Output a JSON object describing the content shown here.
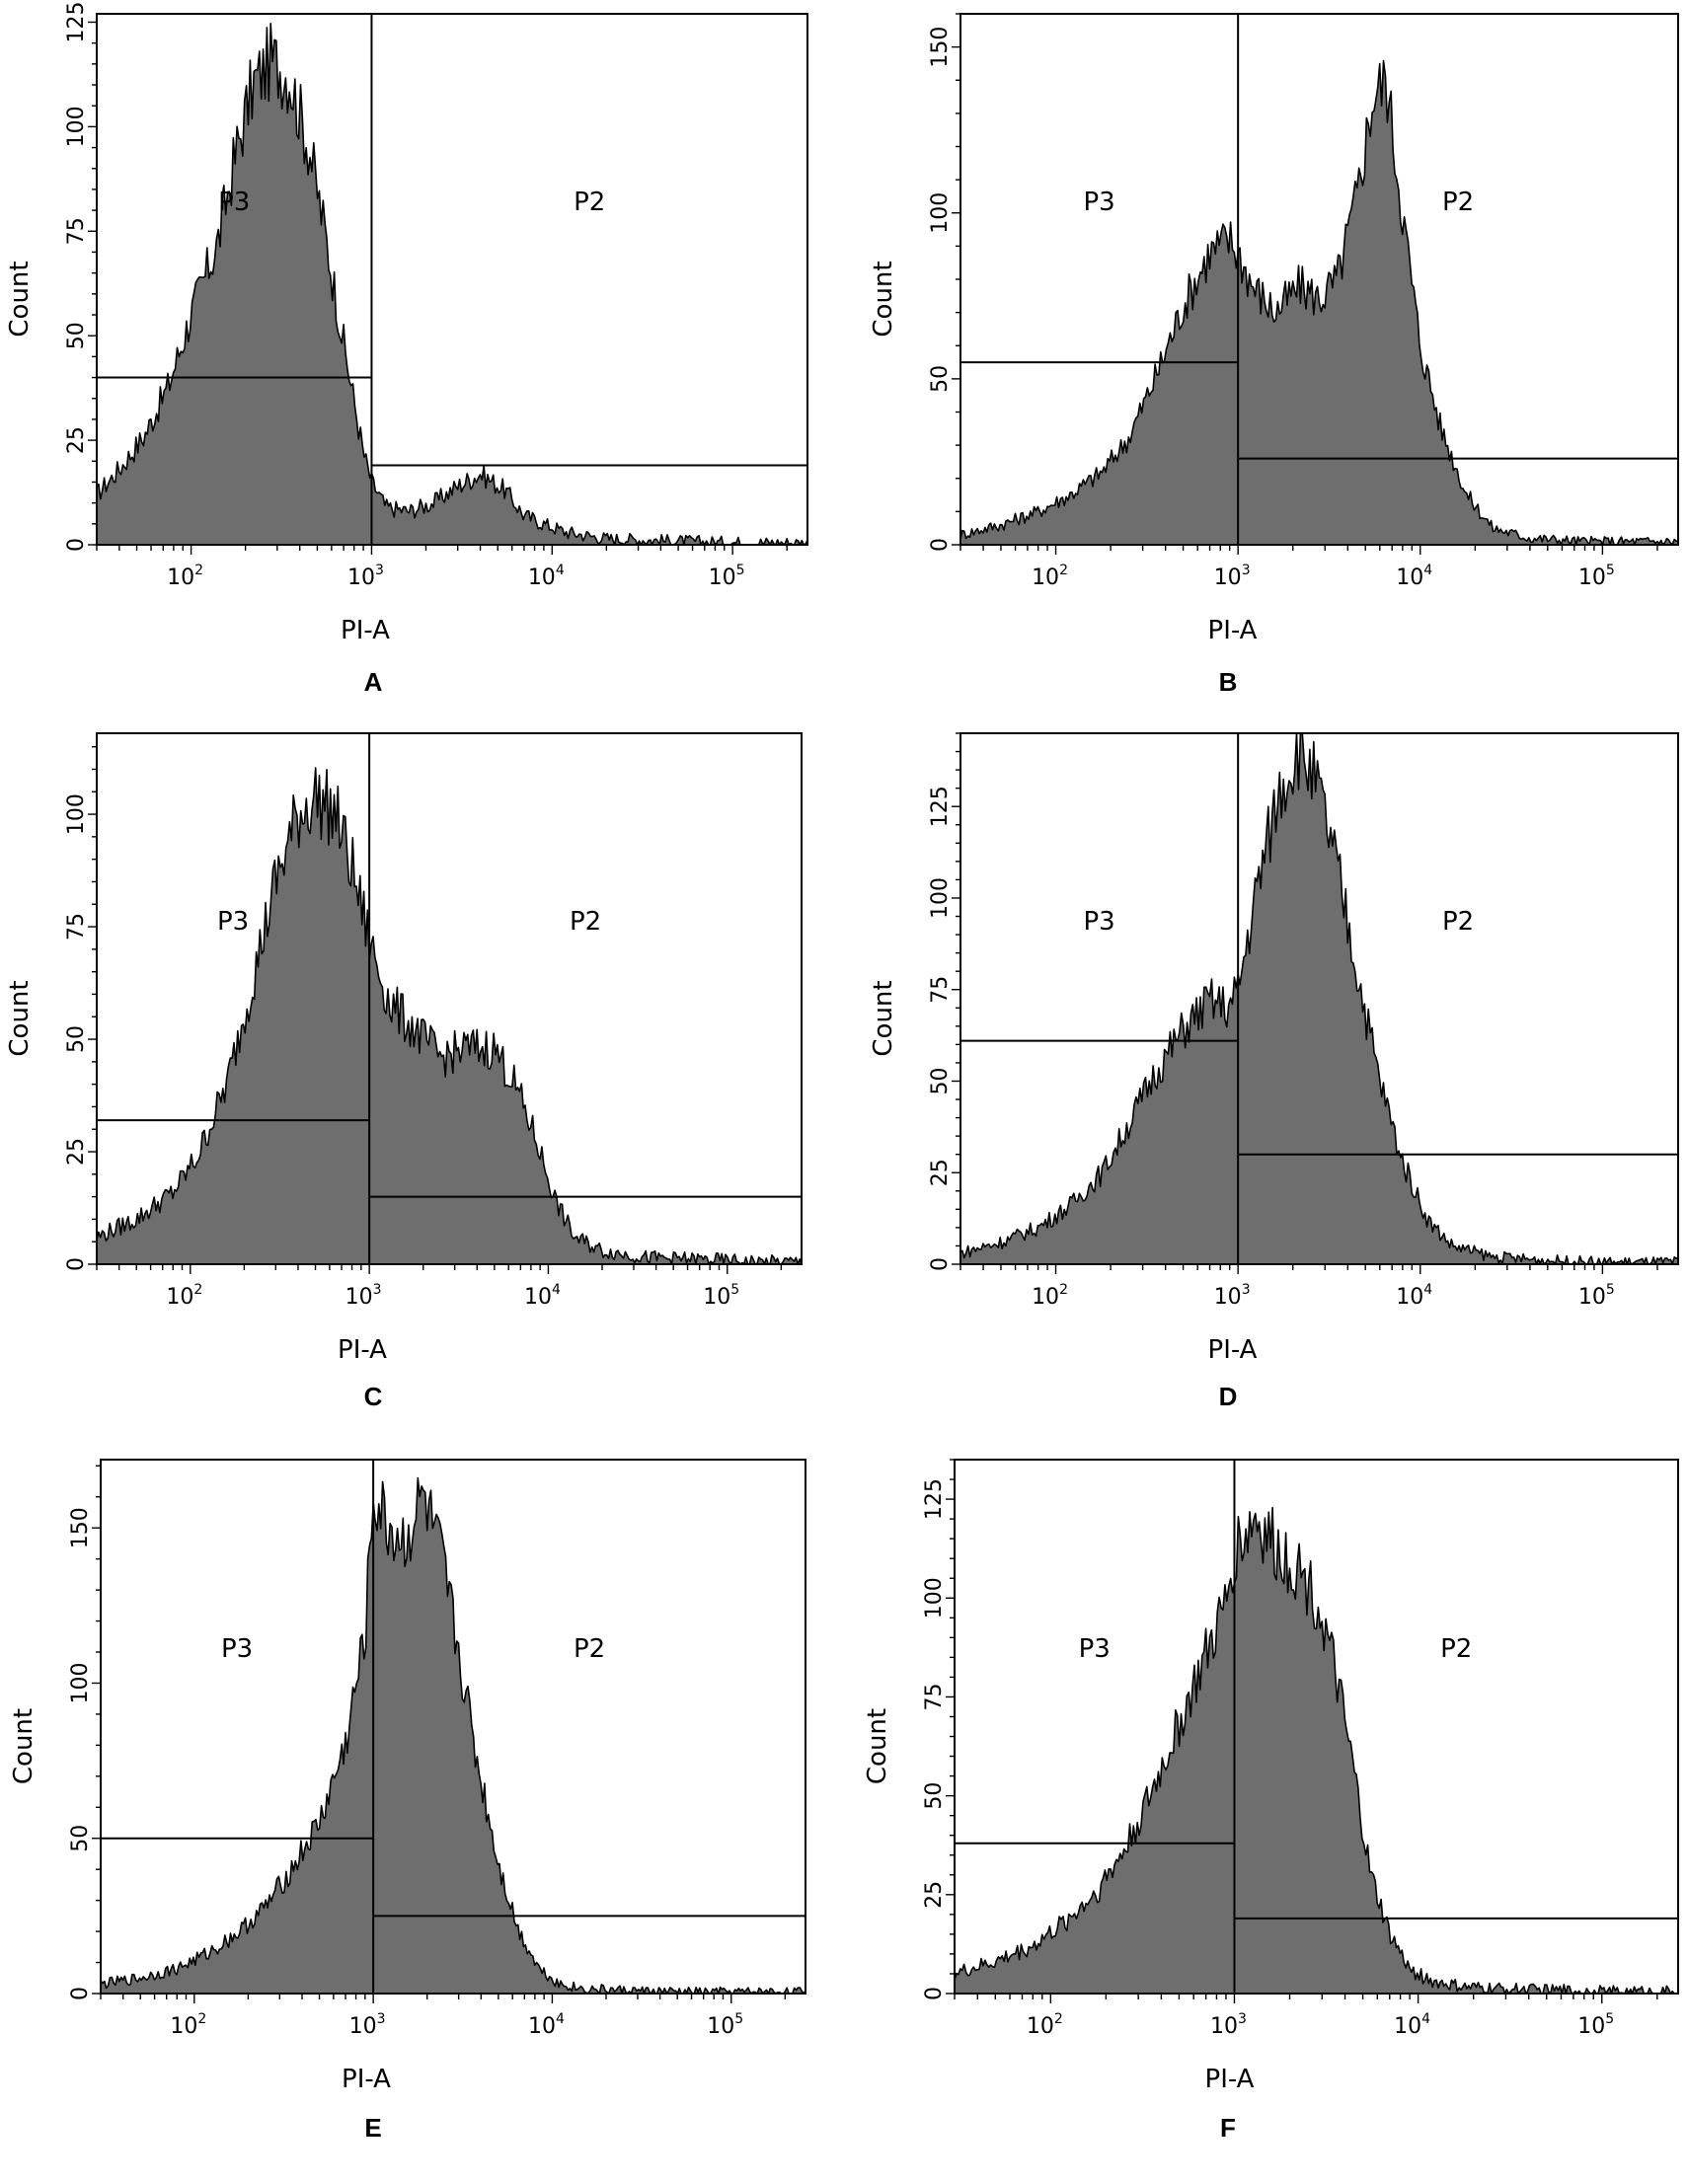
{
  "chart_data": [
    {
      "panel": "A",
      "type": "area",
      "xscale": "log",
      "xlabel": "PI-A",
      "ylabel": "Count",
      "xlim": [
        30,
        260000
      ],
      "ylim": [
        0,
        127
      ],
      "yticks": [
        "0",
        "25",
        "50",
        "75",
        "100",
        "125"
      ],
      "xticks": [
        {
          "base": "10",
          "exp": "2"
        },
        {
          "base": "10",
          "exp": "3"
        },
        {
          "base": "10",
          "exp": "4"
        },
        {
          "base": "10",
          "exp": "5"
        }
      ],
      "gates": [
        {
          "name": "P3",
          "x": [
            30,
            1000
          ],
          "y": 40
        },
        {
          "name": "P2",
          "x": [
            1000,
            260000
          ],
          "y": 19
        }
      ],
      "series": [
        {
          "x": [
            30,
            40,
            55,
            75,
            100,
            140,
            180,
            220,
            280,
            350,
            450,
            550,
            700,
            900,
            1000,
            1200,
            1600,
            2200,
            3000,
            4000,
            5500,
            7000,
            9000,
            12000,
            20000,
            40000,
            80000,
            150000,
            260000
          ],
          "y": [
            12,
            18,
            26,
            38,
            55,
            72,
            95,
            110,
            116,
            112,
            95,
            75,
            48,
            22,
            15,
            9,
            8,
            10,
            14,
            17,
            13,
            7,
            5,
            3,
            1.5,
            1,
            0.6,
            0.5,
            0.5
          ]
        }
      ]
    },
    {
      "panel": "B",
      "type": "area",
      "xscale": "log",
      "xlabel": "PI-A",
      "ylabel": "Count",
      "xlim": [
        30,
        260000
      ],
      "ylim": [
        0,
        160
      ],
      "yticks": [
        "0",
        "50",
        "100",
        "150"
      ],
      "xticks": [
        {
          "base": "10",
          "exp": "2"
        },
        {
          "base": "10",
          "exp": "3"
        },
        {
          "base": "10",
          "exp": "4"
        },
        {
          "base": "10",
          "exp": "5"
        }
      ],
      "gates": [
        {
          "name": "P3",
          "x": [
            30,
            1000
          ],
          "y": 55
        },
        {
          "name": "P2",
          "x": [
            1000,
            260000
          ],
          "y": 26
        }
      ],
      "series": [
        {
          "x": [
            30,
            50,
            80,
            120,
            180,
            250,
            350,
            500,
            700,
            900,
            1000,
            1200,
            1600,
            2200,
            2800,
            3500,
            4500,
            5500,
            6500,
            8000,
            10000,
            13000,
            18000,
            25000,
            40000,
            80000,
            150000,
            260000
          ],
          "y": [
            3,
            6,
            10,
            15,
            22,
            32,
            50,
            72,
            88,
            92,
            88,
            78,
            70,
            78,
            74,
            80,
            105,
            135,
            140,
            100,
            60,
            35,
            15,
            5,
            2,
            1,
            1,
            1
          ]
        }
      ]
    },
    {
      "panel": "C",
      "type": "area",
      "xscale": "log",
      "xlabel": "PI-A",
      "ylabel": "Count",
      "xlim": [
        30,
        260000
      ],
      "ylim": [
        0,
        118
      ],
      "yticks": [
        "0",
        "25",
        "50",
        "75",
        "100"
      ],
      "xticks": [
        {
          "base": "10",
          "exp": "2"
        },
        {
          "base": "10",
          "exp": "3"
        },
        {
          "base": "10",
          "exp": "4"
        },
        {
          "base": "10",
          "exp": "5"
        }
      ],
      "gates": [
        {
          "name": "P3",
          "x": [
            30,
            1000
          ],
          "y": 32
        },
        {
          "name": "P2",
          "x": [
            1000,
            260000
          ],
          "y": 15
        }
      ],
      "series": [
        {
          "x": [
            30,
            50,
            80,
            110,
            160,
            220,
            300,
            400,
            500,
            650,
            800,
            1000,
            1300,
            1800,
            2500,
            3500,
            5000,
            6500,
            8500,
            11000,
            14000,
            20000,
            35000,
            80000,
            150000,
            260000
          ],
          "y": [
            6,
            10,
            16,
            24,
            40,
            62,
            85,
            100,
            104,
            100,
            88,
            72,
            58,
            52,
            46,
            48,
            48,
            40,
            28,
            14,
            6,
            3,
            1.5,
            1,
            0.5,
            0.5
          ]
        }
      ]
    },
    {
      "panel": "D",
      "type": "area",
      "xscale": "log",
      "xlabel": "PI-A",
      "ylabel": "Count",
      "xlim": [
        30,
        260000
      ],
      "ylim": [
        0,
        145
      ],
      "yticks": [
        "0",
        "25",
        "50",
        "75",
        "100",
        "125"
      ],
      "xticks": [
        {
          "base": "10",
          "exp": "2"
        },
        {
          "base": "10",
          "exp": "3"
        },
        {
          "base": "10",
          "exp": "4"
        },
        {
          "base": "10",
          "exp": "5"
        }
      ],
      "gates": [
        {
          "name": "P3",
          "x": [
            30,
            1000
          ],
          "y": 61
        },
        {
          "name": "P2",
          "x": [
            1000,
            260000
          ],
          "y": 30
        }
      ],
      "series": [
        {
          "x": [
            30,
            50,
            80,
            120,
            180,
            250,
            350,
            500,
            700,
            900,
            1000,
            1300,
            1700,
            2200,
            2800,
            3500,
            4500,
            6000,
            8000,
            11000,
            15000,
            25000,
            50000,
            100000,
            260000
          ],
          "y": [
            3,
            6,
            10,
            16,
            25,
            38,
            52,
            64,
            72,
            70,
            75,
            105,
            130,
            142,
            128,
            108,
            80,
            50,
            28,
            12,
            5,
            2,
            1,
            0.5,
            0.5
          ]
        }
      ]
    },
    {
      "panel": "E",
      "type": "area",
      "xscale": "log",
      "xlabel": "PI-A",
      "ylabel": "Count",
      "xlim": [
        30,
        260000
      ],
      "ylim": [
        0,
        172
      ],
      "yticks": [
        "0",
        "50",
        "100",
        "150"
      ],
      "xticks": [
        {
          "base": "10",
          "exp": "2"
        },
        {
          "base": "10",
          "exp": "3"
        },
        {
          "base": "10",
          "exp": "4"
        },
        {
          "base": "10",
          "exp": "5"
        }
      ],
      "gates": [
        {
          "name": "P3",
          "x": [
            30,
            1000
          ],
          "y": 50
        },
        {
          "name": "P2",
          "x": [
            1000,
            260000
          ],
          "y": 25
        }
      ],
      "series": [
        {
          "x": [
            30,
            50,
            80,
            120,
            180,
            250,
            350,
            500,
            700,
            900,
            1000,
            1200,
            1500,
            1900,
            2400,
            3000,
            3800,
            5000,
            6500,
            8500,
            11000,
            15000,
            25000,
            50000,
            100000,
            260000
          ],
          "y": [
            3,
            5,
            8,
            13,
            20,
            28,
            40,
            55,
            80,
            115,
            160,
            150,
            145,
            160,
            140,
            110,
            75,
            42,
            20,
            8,
            3,
            1.5,
            1,
            0.5,
            0.5,
            0.5
          ]
        }
      ]
    },
    {
      "panel": "F",
      "type": "area",
      "xscale": "log",
      "xlabel": "PI-A",
      "ylabel": "Count",
      "xlim": [
        30,
        260000
      ],
      "ylim": [
        0,
        135
      ],
      "yticks": [
        "0",
        "25",
        "50",
        "75",
        "100",
        "125"
      ],
      "xticks": [
        {
          "base": "10",
          "exp": "2"
        },
        {
          "base": "10",
          "exp": "3"
        },
        {
          "base": "10",
          "exp": "4"
        },
        {
          "base": "10",
          "exp": "5"
        }
      ],
      "gates": [
        {
          "name": "P3",
          "x": [
            30,
            1000
          ],
          "y": 38
        },
        {
          "name": "P2",
          "x": [
            1000,
            260000
          ],
          "y": 19
        }
      ],
      "series": [
        {
          "x": [
            30,
            50,
            80,
            120,
            180,
            250,
            350,
            500,
            700,
            900,
            1000,
            1300,
            1700,
            2200,
            2800,
            3500,
            4500,
            5500,
            7000,
            9000,
            12000,
            18000,
            40000,
            100000,
            260000
          ],
          "y": [
            5,
            8,
            12,
            18,
            26,
            36,
            50,
            68,
            85,
            98,
            112,
            120,
            112,
            108,
            100,
            82,
            55,
            30,
            15,
            6,
            3,
            1.5,
            1,
            0.5,
            0.5
          ]
        }
      ]
    }
  ]
}
